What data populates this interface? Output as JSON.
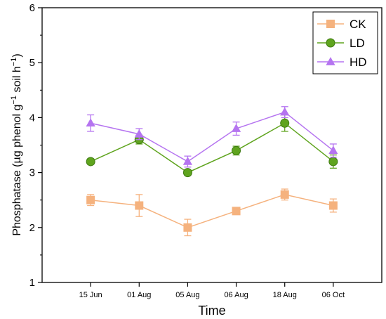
{
  "chart_data": {
    "type": "line",
    "xlabel": "Time",
    "ylabel": "Phosphatase (µg phenol g⁻¹ soil h⁻¹)",
    "ylabel_parts": {
      "pre": "Phosphatase (µg phenol g",
      "sup1": "−1",
      "mid": " soil h",
      "sup2": "−1",
      "post": ")"
    },
    "categories": [
      "15 Jun",
      "01 Aug",
      "05 Aug",
      "06 Aug",
      "18 Aug",
      "06 Oct"
    ],
    "ylim": [
      1,
      6
    ],
    "yticks": [
      1,
      2,
      3,
      4,
      5,
      6
    ],
    "grid": false,
    "legend_position": "top-right",
    "series": [
      {
        "name": "CK",
        "color": "#f5b27e",
        "marker": "square",
        "values": [
          2.5,
          2.4,
          2.0,
          2.3,
          2.6,
          2.4
        ],
        "errors": [
          0.1,
          0.2,
          0.15,
          0.05,
          0.1,
          0.12
        ]
      },
      {
        "name": "LD",
        "color": "#5fa41e",
        "marker": "circle",
        "values": [
          3.2,
          3.6,
          3.0,
          3.4,
          3.9,
          3.2
        ],
        "errors": [
          0.05,
          0.08,
          0.05,
          0.08,
          0.15,
          0.12
        ]
      },
      {
        "name": "HD",
        "color": "#b574f0",
        "marker": "triangle",
        "values": [
          3.9,
          3.7,
          3.2,
          3.8,
          4.1,
          3.4
        ],
        "errors": [
          0.15,
          0.1,
          0.1,
          0.12,
          0.1,
          0.12
        ]
      }
    ]
  }
}
